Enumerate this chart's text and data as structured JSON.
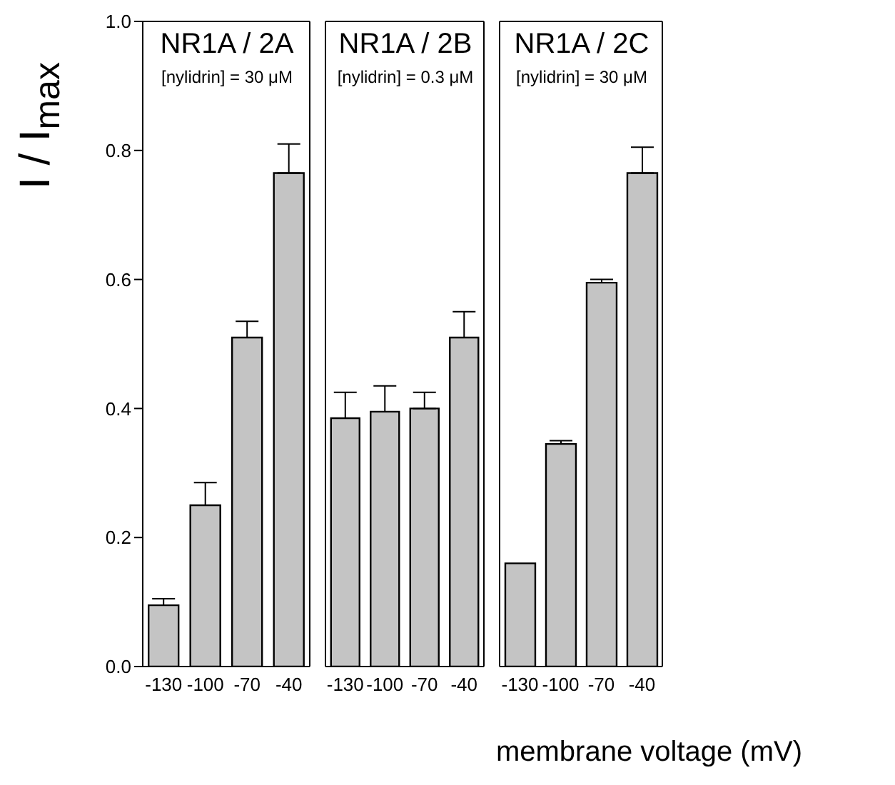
{
  "chart_data": [
    {
      "type": "bar",
      "title": "NR1A / 2A",
      "subtitle": "[nylidrin] = 30 μM",
      "ylabel": "I / I$_{max}$",
      "categories": [
        "-130",
        "-100",
        "-70",
        "-40"
      ],
      "values": [
        0.095,
        0.25,
        0.51,
        0.765
      ],
      "errors": [
        0.01,
        0.035,
        0.025,
        0.045
      ],
      "color": "#c4c4c4",
      "ylim": [
        0,
        1
      ],
      "yticks": [
        {
          "value": 0,
          "label": "0.0"
        },
        {
          "value": 0.2,
          "label": "0.2"
        },
        {
          "value": 0.4,
          "label": "0.4"
        },
        {
          "value": 0.6,
          "label": "0.6"
        },
        {
          "value": 0.8,
          "label": "0.8"
        },
        {
          "value": 1,
          "label": "1.0"
        }
      ]
    },
    {
      "type": "bar",
      "title": "NR1A / 2B",
      "subtitle": "[nylidrin] = 0.3 μM",
      "categories": [
        "-130",
        "-100",
        "-70",
        "-40"
      ],
      "values": [
        0.385,
        0.395,
        0.4,
        0.51
      ],
      "errors": [
        0.04,
        0.04,
        0.025,
        0.04
      ],
      "color": "#c4c4c4",
      "ylim": [
        0,
        1
      ],
      "tick_labels": "x"
    },
    {
      "type": "bar",
      "title": "NR1A / 2C",
      "subtitle": "[nylidrin] = 30 μM",
      "xlabel": "membrane voltage (mV)",
      "categories": [
        "-130",
        "-100",
        "-70",
        "-40"
      ],
      "values": [
        0.16,
        0.345,
        0.595,
        0.765
      ],
      "errors": [
        null,
        0.005,
        0.005,
        0.04
      ],
      "color": "#c4c4c4",
      "ylim": [
        0,
        1
      ],
      "tick_labels": "x"
    }
  ]
}
